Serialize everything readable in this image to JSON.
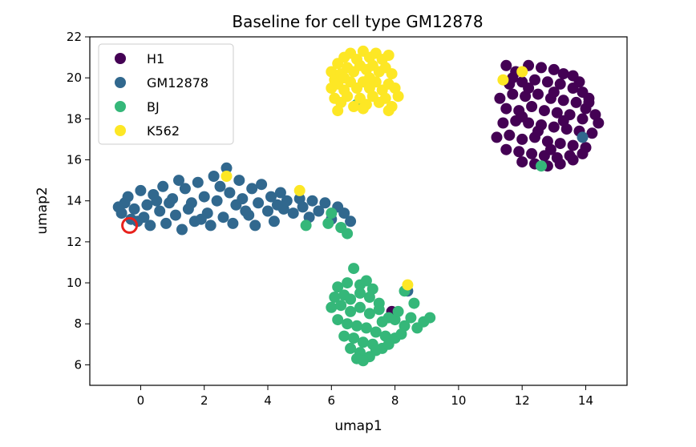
{
  "chart_data": {
    "type": "scatter",
    "title": "Baseline for cell type GM12878",
    "xlabel": "umap1",
    "ylabel": "umap2",
    "xlim": [
      -1.6,
      15.3
    ],
    "ylim": [
      5.0,
      22.0
    ],
    "xticks": [
      0,
      2,
      4,
      6,
      8,
      10,
      12,
      14
    ],
    "yticks": [
      6,
      8,
      10,
      12,
      14,
      16,
      18,
      20,
      22
    ],
    "grid": false,
    "legend_position": "top-left",
    "series": [
      {
        "name": "H1",
        "color": "#440154",
        "points": [
          [
            11.5,
            20.6
          ],
          [
            11.8,
            20.3
          ],
          [
            12.2,
            20.6
          ],
          [
            12.6,
            20.5
          ],
          [
            13.0,
            20.4
          ],
          [
            13.3,
            20.2
          ],
          [
            13.6,
            20.1
          ],
          [
            13.8,
            19.8
          ],
          [
            11.6,
            19.7
          ],
          [
            12.0,
            19.8
          ],
          [
            12.4,
            19.9
          ],
          [
            12.8,
            19.8
          ],
          [
            13.2,
            19.7
          ],
          [
            13.6,
            19.5
          ],
          [
            13.9,
            19.3
          ],
          [
            14.1,
            19.0
          ],
          [
            11.3,
            19.0
          ],
          [
            11.7,
            19.2
          ],
          [
            12.1,
            19.1
          ],
          [
            12.5,
            19.2
          ],
          [
            12.9,
            19.0
          ],
          [
            13.3,
            18.9
          ],
          [
            13.7,
            18.8
          ],
          [
            14.0,
            18.5
          ],
          [
            14.3,
            18.2
          ],
          [
            11.5,
            18.5
          ],
          [
            11.9,
            18.4
          ],
          [
            12.3,
            18.6
          ],
          [
            12.7,
            18.4
          ],
          [
            13.1,
            18.3
          ],
          [
            13.5,
            18.2
          ],
          [
            13.9,
            18.0
          ],
          [
            14.4,
            17.8
          ],
          [
            11.4,
            17.8
          ],
          [
            11.8,
            17.9
          ],
          [
            12.2,
            17.8
          ],
          [
            12.6,
            17.7
          ],
          [
            13.0,
            17.6
          ],
          [
            13.4,
            17.5
          ],
          [
            13.8,
            17.4
          ],
          [
            14.2,
            17.3
          ],
          [
            11.2,
            17.1
          ],
          [
            11.6,
            17.2
          ],
          [
            12.0,
            17.0
          ],
          [
            12.4,
            17.1
          ],
          [
            12.8,
            16.9
          ],
          [
            13.2,
            16.8
          ],
          [
            13.6,
            16.7
          ],
          [
            14.0,
            16.6
          ],
          [
            11.5,
            16.5
          ],
          [
            11.9,
            16.4
          ],
          [
            12.3,
            16.3
          ],
          [
            12.7,
            16.2
          ],
          [
            13.1,
            16.1
          ],
          [
            13.5,
            16.2
          ],
          [
            13.9,
            16.3
          ],
          [
            12.0,
            15.9
          ],
          [
            12.4,
            15.8
          ],
          [
            12.8,
            15.7
          ],
          [
            13.2,
            15.8
          ],
          [
            13.6,
            16.0
          ],
          [
            14.1,
            18.8
          ],
          [
            12.2,
            19.5
          ],
          [
            12.0,
            18.1
          ],
          [
            13.0,
            19.3
          ],
          [
            12.5,
            17.4
          ],
          [
            13.3,
            17.9
          ],
          [
            12.9,
            16.5
          ],
          [
            11.7,
            20.0
          ],
          [
            7.9,
            8.6
          ]
        ]
      },
      {
        "name": "GM12878",
        "color": "#31688e",
        "points": [
          [
            -0.6,
            13.4
          ],
          [
            -0.5,
            13.9
          ],
          [
            -0.4,
            14.2
          ],
          [
            -0.2,
            13.6
          ],
          [
            -0.1,
            13.0
          ],
          [
            0.0,
            14.5
          ],
          [
            0.2,
            13.8
          ],
          [
            0.3,
            12.8
          ],
          [
            0.4,
            14.3
          ],
          [
            0.6,
            13.5
          ],
          [
            0.7,
            14.7
          ],
          [
            0.8,
            12.9
          ],
          [
            1.0,
            14.1
          ],
          [
            1.1,
            13.3
          ],
          [
            1.2,
            15.0
          ],
          [
            1.3,
            12.6
          ],
          [
            1.4,
            14.6
          ],
          [
            1.6,
            13.9
          ],
          [
            1.7,
            13.0
          ],
          [
            1.8,
            14.9
          ],
          [
            2.0,
            14.2
          ],
          [
            2.1,
            13.4
          ],
          [
            2.2,
            12.8
          ],
          [
            2.3,
            15.2
          ],
          [
            2.4,
            14.0
          ],
          [
            2.6,
            13.2
          ],
          [
            2.7,
            15.6
          ],
          [
            2.8,
            14.4
          ],
          [
            2.9,
            12.9
          ],
          [
            3.0,
            13.8
          ],
          [
            3.1,
            15.0
          ],
          [
            3.2,
            14.1
          ],
          [
            3.4,
            13.3
          ],
          [
            3.5,
            14.6
          ],
          [
            3.6,
            12.8
          ],
          [
            3.7,
            13.9
          ],
          [
            3.8,
            14.8
          ],
          [
            4.0,
            13.5
          ],
          [
            4.1,
            14.2
          ],
          [
            4.2,
            13.0
          ],
          [
            4.4,
            14.4
          ],
          [
            4.5,
            13.6
          ],
          [
            4.6,
            14.0
          ],
          [
            4.8,
            13.4
          ],
          [
            5.0,
            14.1
          ],
          [
            5.1,
            13.7
          ],
          [
            5.3,
            13.2
          ],
          [
            5.4,
            14.0
          ],
          [
            5.6,
            13.5
          ],
          [
            5.8,
            13.9
          ],
          [
            6.0,
            13.1
          ],
          [
            6.2,
            13.7
          ],
          [
            6.4,
            13.4
          ],
          [
            6.6,
            13.0
          ],
          [
            -0.7,
            13.7
          ],
          [
            0.1,
            13.2
          ],
          [
            0.9,
            13.9
          ],
          [
            1.5,
            13.6
          ],
          [
            2.5,
            14.7
          ],
          [
            3.3,
            13.5
          ],
          [
            4.3,
            13.8
          ],
          [
            1.9,
            13.1
          ],
          [
            0.5,
            14.0
          ],
          [
            -0.3,
            13.1
          ],
          [
            13.9,
            17.1
          ],
          [
            8.4,
            9.6
          ]
        ]
      },
      {
        "name": "BJ",
        "color": "#35b779",
        "points": [
          [
            6.2,
            9.8
          ],
          [
            6.5,
            10.0
          ],
          [
            6.7,
            10.7
          ],
          [
            6.9,
            9.9
          ],
          [
            7.1,
            10.1
          ],
          [
            7.3,
            9.7
          ],
          [
            6.1,
            9.3
          ],
          [
            6.4,
            9.4
          ],
          [
            6.6,
            9.2
          ],
          [
            6.9,
            9.5
          ],
          [
            7.2,
            9.3
          ],
          [
            7.5,
            9.0
          ],
          [
            6.0,
            8.8
          ],
          [
            6.3,
            8.9
          ],
          [
            6.6,
            8.6
          ],
          [
            6.9,
            8.8
          ],
          [
            7.2,
            8.5
          ],
          [
            7.5,
            8.7
          ],
          [
            7.8,
            8.3
          ],
          [
            8.0,
            8.2
          ],
          [
            8.3,
            7.9
          ],
          [
            8.5,
            8.3
          ],
          [
            8.7,
            7.8
          ],
          [
            8.9,
            8.1
          ],
          [
            9.1,
            8.3
          ],
          [
            8.6,
            9.0
          ],
          [
            8.3,
            9.6
          ],
          [
            6.2,
            8.2
          ],
          [
            6.5,
            8.0
          ],
          [
            6.8,
            7.9
          ],
          [
            7.1,
            7.8
          ],
          [
            7.4,
            7.6
          ],
          [
            7.7,
            7.4
          ],
          [
            8.0,
            7.3
          ],
          [
            8.2,
            7.5
          ],
          [
            6.4,
            7.4
          ],
          [
            6.7,
            7.3
          ],
          [
            7.0,
            7.1
          ],
          [
            7.3,
            7.0
          ],
          [
            7.6,
            6.8
          ],
          [
            6.6,
            6.8
          ],
          [
            6.9,
            6.6
          ],
          [
            7.2,
            6.4
          ],
          [
            7.4,
            6.7
          ],
          [
            7.0,
            6.2
          ],
          [
            6.8,
            6.3
          ],
          [
            7.8,
            7.0
          ],
          [
            5.2,
            12.8
          ],
          [
            6.0,
            13.4
          ],
          [
            6.3,
            12.7
          ],
          [
            6.5,
            12.4
          ],
          [
            12.6,
            15.7
          ],
          [
            6.8,
            18.7
          ],
          [
            5.9,
            12.9
          ],
          [
            7.6,
            8.1
          ],
          [
            8.1,
            8.6
          ]
        ]
      },
      {
        "name": "K562",
        "color": "#fde725",
        "points": [
          [
            6.0,
            20.3
          ],
          [
            6.2,
            20.7
          ],
          [
            6.4,
            21.0
          ],
          [
            6.6,
            21.2
          ],
          [
            6.8,
            20.9
          ],
          [
            7.0,
            21.3
          ],
          [
            7.2,
            21.0
          ],
          [
            7.4,
            21.2
          ],
          [
            7.6,
            20.9
          ],
          [
            7.8,
            21.1
          ],
          [
            6.1,
            19.9
          ],
          [
            6.3,
            20.2
          ],
          [
            6.5,
            20.5
          ],
          [
            6.7,
            20.3
          ],
          [
            6.9,
            20.6
          ],
          [
            7.1,
            20.4
          ],
          [
            7.3,
            20.6
          ],
          [
            7.5,
            20.3
          ],
          [
            7.7,
            20.5
          ],
          [
            7.9,
            20.2
          ],
          [
            6.0,
            19.5
          ],
          [
            6.2,
            19.7
          ],
          [
            6.4,
            19.4
          ],
          [
            6.6,
            19.8
          ],
          [
            6.8,
            19.5
          ],
          [
            7.0,
            19.8
          ],
          [
            7.2,
            19.5
          ],
          [
            7.4,
            19.8
          ],
          [
            7.6,
            19.4
          ],
          [
            7.8,
            19.7
          ],
          [
            8.0,
            19.5
          ],
          [
            6.1,
            19.0
          ],
          [
            6.3,
            18.8
          ],
          [
            6.5,
            19.1
          ],
          [
            6.7,
            18.6
          ],
          [
            6.9,
            19.0
          ],
          [
            7.1,
            18.7
          ],
          [
            7.3,
            19.1
          ],
          [
            7.5,
            18.8
          ],
          [
            7.7,
            19.0
          ],
          [
            7.9,
            18.6
          ],
          [
            8.1,
            19.1
          ],
          [
            6.2,
            18.4
          ],
          [
            7.0,
            18.5
          ],
          [
            7.8,
            18.4
          ],
          [
            5.0,
            14.5
          ],
          [
            2.7,
            15.2
          ],
          [
            11.4,
            19.9
          ],
          [
            12.0,
            20.3
          ],
          [
            8.4,
            9.9
          ],
          [
            6.4,
            20.0
          ],
          [
            7.2,
            20.0
          ]
        ]
      }
    ],
    "annotations": [
      {
        "type": "circle-marker",
        "x": -0.35,
        "y": 12.8,
        "color": "#e8211c"
      }
    ]
  }
}
